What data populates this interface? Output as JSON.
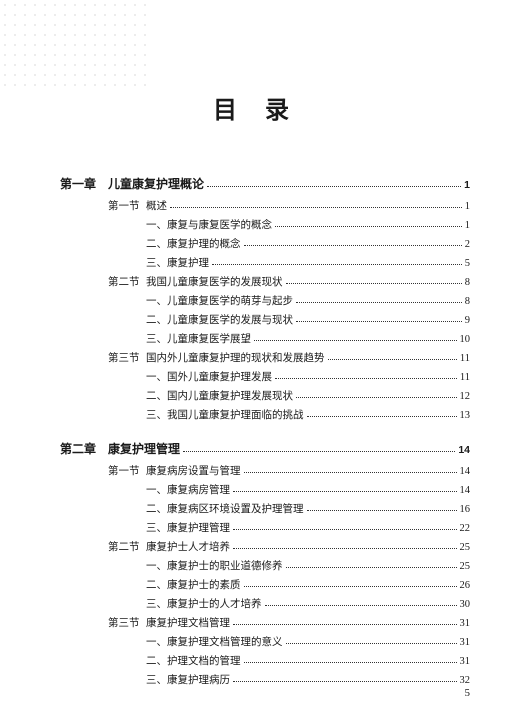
{
  "title": "目录",
  "page_number": "5",
  "chapters": [
    {
      "num": "第一章",
      "title": "儿童康复护理概论",
      "page": "1",
      "sections": [
        {
          "num": "第一节",
          "title": "概述",
          "page": "1",
          "subs": [
            {
              "title": "一、康复与康复医学的概念",
              "page": "1"
            },
            {
              "title": "二、康复护理的概念",
              "page": "2"
            },
            {
              "title": "三、康复护理",
              "page": "5"
            }
          ]
        },
        {
          "num": "第二节",
          "title": "我国儿童康复医学的发展现状",
          "page": "8",
          "subs": [
            {
              "title": "一、儿童康复医学的萌芽与起步",
              "page": "8"
            },
            {
              "title": "二、儿童康复医学的发展与现状",
              "page": "9"
            },
            {
              "title": "三、儿童康复医学展望",
              "page": "10"
            }
          ]
        },
        {
          "num": "第三节",
          "title": "国内外儿童康复护理的现状和发展趋势",
          "page": "11",
          "subs": [
            {
              "title": "一、国外儿童康复护理发展",
              "page": "11"
            },
            {
              "title": "二、国内儿童康复护理发展现状",
              "page": "12"
            },
            {
              "title": "三、我国儿童康复护理面临的挑战",
              "page": "13"
            }
          ]
        }
      ]
    },
    {
      "num": "第二章",
      "title": "康复护理管理",
      "page": "14",
      "sections": [
        {
          "num": "第一节",
          "title": "康复病房设置与管理",
          "page": "14",
          "subs": [
            {
              "title": "一、康复病房管理",
              "page": "14"
            },
            {
              "title": "二、康复病区环境设置及护理管理",
              "page": "16"
            },
            {
              "title": "三、康复护理管理",
              "page": "22"
            }
          ]
        },
        {
          "num": "第二节",
          "title": "康复护士人才培养",
          "page": "25",
          "subs": [
            {
              "title": "一、康复护士的职业道德修养",
              "page": "25"
            },
            {
              "title": "二、康复护士的素质",
              "page": "26"
            },
            {
              "title": "三、康复护士的人才培养",
              "page": "30"
            }
          ]
        },
        {
          "num": "第三节",
          "title": "康复护理文档管理",
          "page": "31",
          "subs": [
            {
              "title": "一、康复护理文档管理的意义",
              "page": "31"
            },
            {
              "title": "二、护理文档的管理",
              "page": "31"
            },
            {
              "title": "三、康复护理病历",
              "page": "32"
            }
          ]
        }
      ]
    }
  ]
}
